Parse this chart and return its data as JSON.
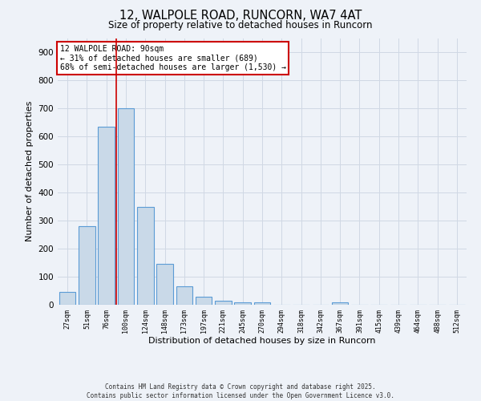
{
  "title_line1": "12, WALPOLE ROAD, RUNCORN, WA7 4AT",
  "title_line2": "Size of property relative to detached houses in Runcorn",
  "xlabel": "Distribution of detached houses by size in Runcorn",
  "ylabel": "Number of detached properties",
  "footnote_line1": "Contains HM Land Registry data © Crown copyright and database right 2025.",
  "footnote_line2": "Contains public sector information licensed under the Open Government Licence v3.0.",
  "categories": [
    "27sqm",
    "51sqm",
    "76sqm",
    "100sqm",
    "124sqm",
    "148sqm",
    "173sqm",
    "197sqm",
    "221sqm",
    "245sqm",
    "270sqm",
    "294sqm",
    "318sqm",
    "342sqm",
    "367sqm",
    "391sqm",
    "415sqm",
    "439sqm",
    "464sqm",
    "488sqm",
    "512sqm"
  ],
  "values": [
    45,
    280,
    635,
    700,
    350,
    145,
    65,
    30,
    14,
    8,
    8,
    0,
    0,
    0,
    8,
    0,
    0,
    0,
    0,
    0,
    0
  ],
  "bar_color": "#c9d9e8",
  "bar_edge_color": "#5b9bd5",
  "grid_color": "#d0d8e4",
  "background_color": "#eef2f8",
  "annotation_box_text": "12 WALPOLE ROAD: 90sqm\n← 31% of detached houses are smaller (689)\n68% of semi-detached houses are larger (1,530) →",
  "annotation_box_color": "#ffffff",
  "annotation_box_edge_color": "#cc0000",
  "red_line_x": 2.5,
  "ylim": [
    0,
    950
  ],
  "yticks": [
    0,
    100,
    200,
    300,
    400,
    500,
    600,
    700,
    800,
    900
  ]
}
